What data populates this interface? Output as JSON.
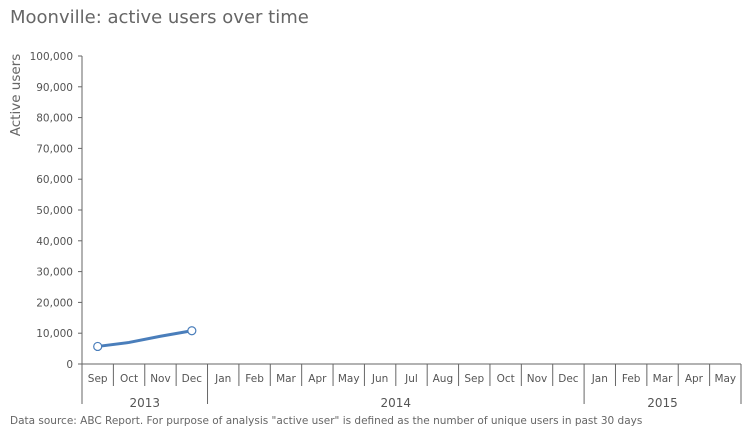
{
  "chart_data": {
    "type": "line",
    "title": "Moonville: active users over time",
    "ylabel": "Active users",
    "xlabel": "",
    "ylim": [
      0,
      100000
    ],
    "yticks": [
      0,
      10000,
      20000,
      30000,
      40000,
      50000,
      60000,
      70000,
      80000,
      90000,
      100000
    ],
    "ytick_labels": [
      "0",
      "10,000",
      "20,000",
      "30,000",
      "40,000",
      "50,000",
      "60,000",
      "70,000",
      "80,000",
      "90,000",
      "100,000"
    ],
    "x_months": [
      "Sep",
      "Oct",
      "Nov",
      "Dec",
      "Jan",
      "Feb",
      "Mar",
      "Apr",
      "May",
      "Jun",
      "Jul",
      "Aug",
      "Sep",
      "Oct",
      "Nov",
      "Dec",
      "Jan",
      "Feb",
      "Mar",
      "Apr",
      "May"
    ],
    "x_years": [
      {
        "label": "2013",
        "months": 4
      },
      {
        "label": "2014",
        "months": 12
      },
      {
        "label": "2015",
        "months": 5
      }
    ],
    "series": [
      {
        "x": [
          "2013-09",
          "2013-10",
          "2013-11",
          "2013-12"
        ],
        "values": [
          5700,
          7000,
          9000,
          10800
        ],
        "color": "#4a7ebb"
      }
    ],
    "footnote": "Data source: ABC Report. For purpose of analysis \"active user\" is defined as the number of unique users in past 30 days",
    "grid": false,
    "colors": {
      "line": "#4a7ebb",
      "axis": "#666666",
      "text": "#555555"
    }
  }
}
